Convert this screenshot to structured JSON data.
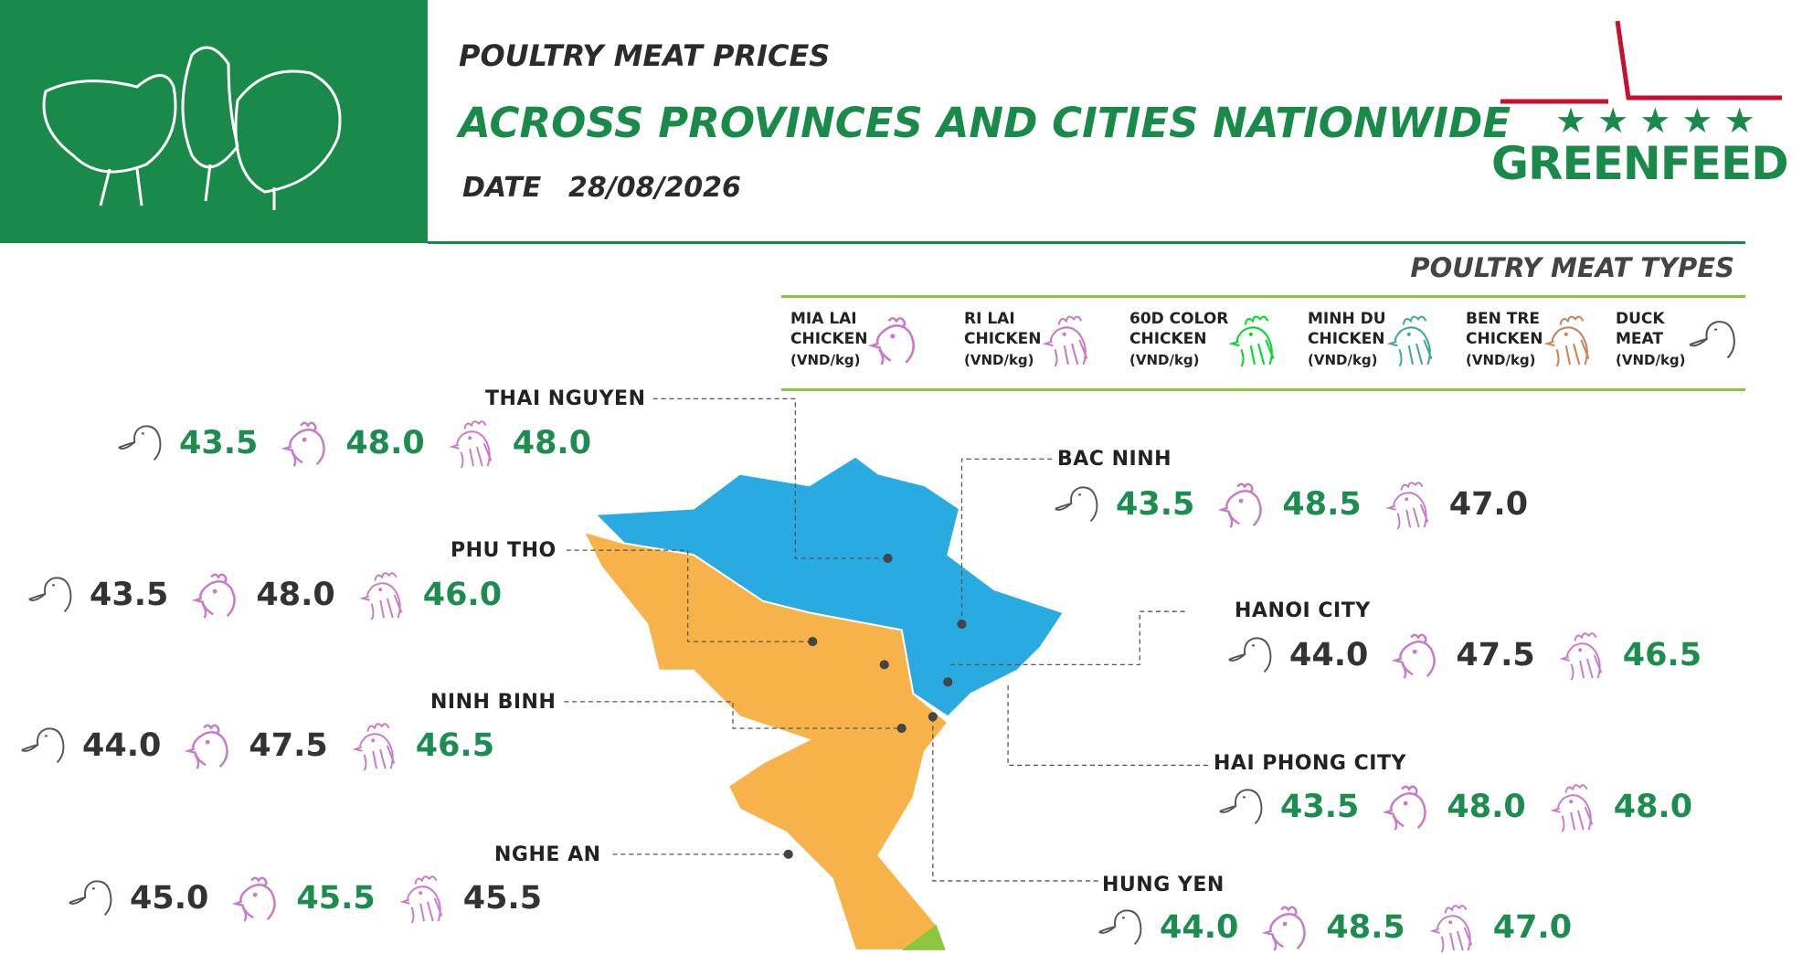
{
  "header": {
    "title": "POULTRY MEAT PRICES",
    "subtitle": "ACROSS PROVINCES AND CITIES NATIONWIDE",
    "date_label": "DATE",
    "date": "28/08/2026",
    "logo": "GREENFEED"
  },
  "legend": {
    "title": "POULTRY MEAT TYPES",
    "items": [
      {
        "lines": [
          "MIA LAI",
          "CHICKEN"
        ],
        "unit": "(VND/kg)"
      },
      {
        "lines": [
          "RI LAI",
          "CHICKEN"
        ],
        "unit": "(VND/kg)"
      },
      {
        "lines": [
          "60D COLOR",
          "CHICKEN"
        ],
        "unit": "(VND/kg)"
      },
      {
        "lines": [
          "MINH DU",
          "CHICKEN"
        ],
        "unit": "(VND/kg)"
      },
      {
        "lines": [
          "BEN TRE",
          "CHICKEN"
        ],
        "unit": "(VND/kg)"
      },
      {
        "lines": [
          "DUCK",
          "MEAT"
        ],
        "unit": "(VND/kg)"
      }
    ]
  },
  "provinces": [
    {
      "name": "THAI NGUYEN",
      "prices": [
        {
          "price": "43.5",
          "color": "#1d8c4f"
        },
        {
          "price": "48.0",
          "color": "#1d8c4f"
        },
        {
          "price": "48.0",
          "color": "#1d8c4f"
        }
      ]
    },
    {
      "name": "PHU THO",
      "prices": [
        {
          "price": "43.5",
          "color": "#333333"
        },
        {
          "price": "48.0",
          "color": "#333333"
        },
        {
          "price": "46.0",
          "color": "#1d8c4f"
        }
      ]
    },
    {
      "name": "NINH BINH",
      "prices": [
        {
          "price": "44.0",
          "color": "#333333"
        },
        {
          "price": "47.5",
          "color": "#333333"
        },
        {
          "price": "46.5",
          "color": "#1d8c4f"
        }
      ]
    },
    {
      "name": "NGHE AN",
      "prices": [
        {
          "price": "45.0",
          "color": "#333333"
        },
        {
          "price": "45.5",
          "color": "#1d8c4f"
        },
        {
          "price": "45.5",
          "color": "#333333"
        }
      ]
    },
    {
      "name": "BAC NINH",
      "prices": [
        {
          "price": "43.5",
          "color": "#1d8c4f"
        },
        {
          "price": "48.5",
          "color": "#1d8c4f"
        },
        {
          "price": "47.0",
          "color": "#333333"
        }
      ]
    },
    {
      "name": "HANOI CITY",
      "prices": [
        {
          "price": "44.0",
          "color": "#333333"
        },
        {
          "price": "47.5",
          "color": "#333333"
        },
        {
          "price": "46.5",
          "color": "#1d8c4f"
        }
      ]
    },
    {
      "name": "HAI PHONG CITY",
      "prices": [
        {
          "price": "43.5",
          "color": "#1d8c4f"
        },
        {
          "price": "48.0",
          "color": "#1d8c4f"
        },
        {
          "price": "48.0",
          "color": "#1d8c4f"
        }
      ]
    },
    {
      "name": "HUNG YEN",
      "prices": [
        {
          "price": "44.0",
          "color": "#1d8c4f"
        },
        {
          "price": "48.5",
          "color": "#1d8c4f"
        },
        {
          "price": "47.0",
          "color": "#1d8c4f"
        }
      ]
    }
  ]
}
